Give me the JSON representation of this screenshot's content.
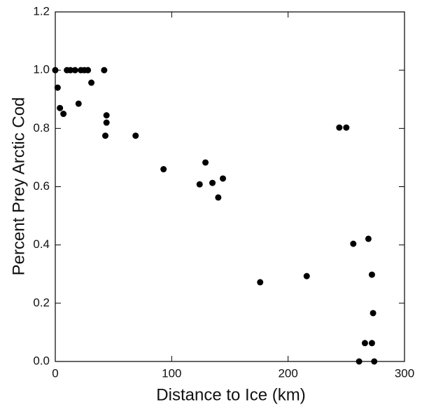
{
  "chart_data": {
    "type": "scatter",
    "x_label": "Distance to Ice (km)",
    "y_label": "Percent Prey Arctic Cod",
    "color": "#000000",
    "xlim": [
      0,
      300
    ],
    "xticks": [
      0,
      100,
      200,
      300
    ],
    "ylim": [
      0,
      1.2
    ],
    "yticks": [
      {
        "value": 0,
        "label": "0.0"
      },
      0.2,
      0.4,
      0.6,
      0.8,
      {
        "value": 1,
        "label": "1.0"
      },
      1.2
    ],
    "x": [
      0,
      2,
      4,
      7,
      10,
      13,
      17,
      22,
      25,
      28,
      20,
      31,
      42,
      44,
      44,
      43,
      69,
      93,
      124,
      129,
      135,
      140,
      144,
      176,
      216,
      244,
      250,
      256,
      269,
      272,
      273,
      266,
      272,
      261,
      274
    ],
    "values": [
      1.0,
      0.94,
      0.87,
      0.85,
      1.0,
      1.0,
      1.0,
      1.0,
      1.0,
      1.0,
      0.885,
      0.957,
      1.0,
      0.845,
      0.82,
      0.775,
      0.775,
      0.66,
      0.608,
      0.683,
      0.613,
      0.563,
      0.628,
      0.272,
      0.293,
      0.803,
      0.803,
      0.404,
      0.421,
      0.298,
      0.166,
      0.063,
      0.063,
      0,
      0
    ]
  }
}
